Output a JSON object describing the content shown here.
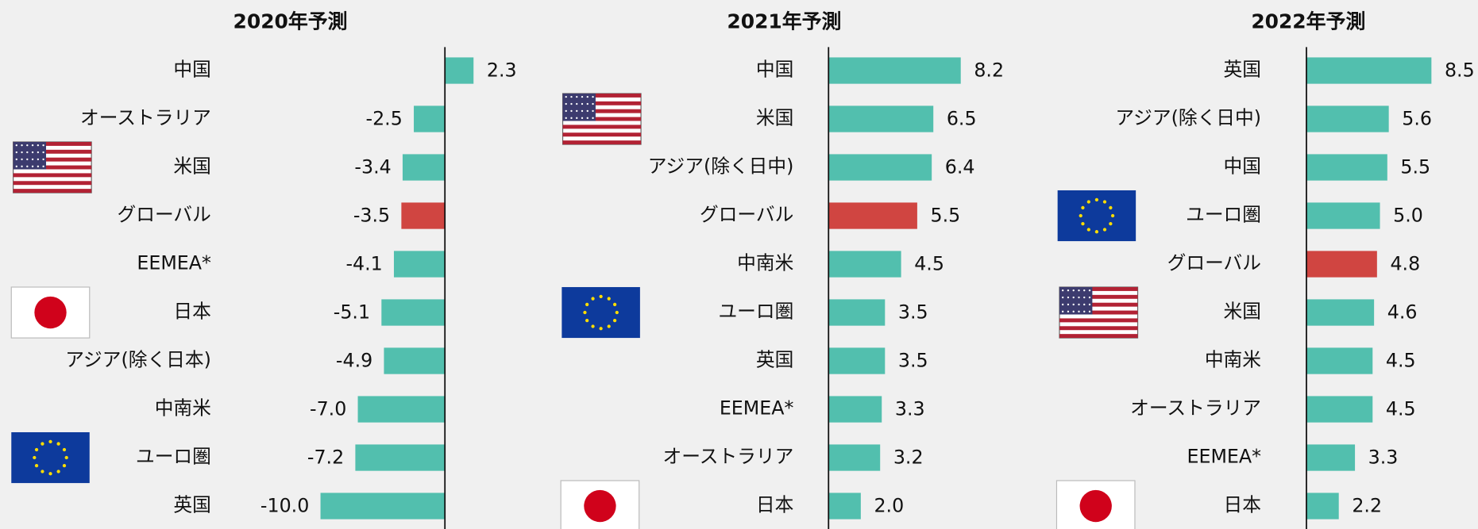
{
  "chart_data": [
    {
      "type": "bar",
      "title": "2020年予測",
      "categories": [
        "中国",
        "オーストラリア",
        "米国",
        "グローバル",
        "EEMEA*",
        "日本",
        "アジア(除く日本)",
        "中南米",
        "ユーロ圏",
        "英国"
      ],
      "values": [
        2.3,
        -2.5,
        -3.4,
        -3.5,
        -4.1,
        -5.1,
        -4.9,
        -7.0,
        -7.2,
        -10.0
      ],
      "value_labels": [
        "2.3",
        "-2.5",
        "-3.4",
        "-3.5",
        "-4.1",
        "-5.1",
        "-4.9",
        "-7.0",
        "-7.2",
        "-10.0"
      ],
      "colors": [
        "#52bfae",
        "#52bfae",
        "#52bfae",
        "#d04541",
        "#52bfae",
        "#52bfae",
        "#52bfae",
        "#52bfae",
        "#52bfae",
        "#52bfae"
      ],
      "xlim": [
        -10.5,
        3
      ]
    },
    {
      "type": "bar",
      "title": "2021年予測",
      "categories": [
        "中国",
        "米国",
        "アジア(除く日中)",
        "グローバル",
        "中南米",
        "ユーロ圏",
        "英国",
        "EEMEA*",
        "オーストラリア",
        "日本"
      ],
      "values": [
        8.2,
        6.5,
        6.4,
        5.5,
        4.5,
        3.5,
        3.5,
        3.3,
        3.2,
        2.0
      ],
      "value_labels": [
        "8.2",
        "6.5",
        "6.4",
        "5.5",
        "4.5",
        "3.5",
        "3.5",
        "3.3",
        "3.2",
        "2.0"
      ],
      "colors": [
        "#52bfae",
        "#52bfae",
        "#52bfae",
        "#d04541",
        "#52bfae",
        "#52bfae",
        "#52bfae",
        "#52bfae",
        "#52bfae",
        "#52bfae"
      ],
      "xlim": [
        0,
        9.5
      ]
    },
    {
      "type": "bar",
      "title": "2022年予測",
      "categories": [
        "英国",
        "アジア(除く日中)",
        "中国",
        "ユーロ圏",
        "グローバル",
        "米国",
        "中南米",
        "オーストラリア",
        "EEMEA*",
        "日本"
      ],
      "values": [
        8.5,
        5.6,
        5.5,
        5.0,
        4.8,
        4.6,
        4.5,
        4.5,
        3.3,
        2.2
      ],
      "value_labels": [
        "8.5",
        "5.6",
        "5.5",
        "5.0",
        "4.8",
        "4.6",
        "4.5",
        "4.5",
        "3.3",
        "2.2"
      ],
      "colors": [
        "#52bfae",
        "#52bfae",
        "#52bfae",
        "#52bfae",
        "#d04541",
        "#52bfae",
        "#52bfae",
        "#52bfae",
        "#52bfae",
        "#52bfae"
      ],
      "xlim": [
        0,
        9
      ]
    }
  ]
}
